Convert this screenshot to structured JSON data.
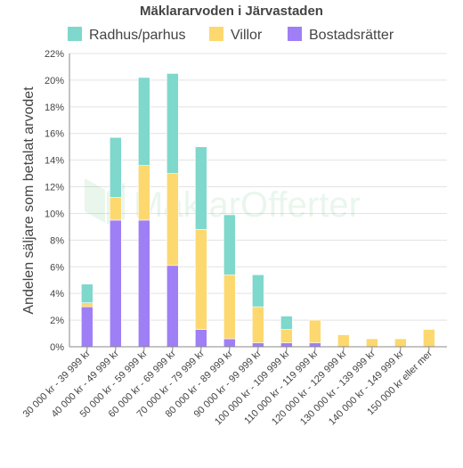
{
  "chart_data": {
    "type": "bar",
    "stacked": true,
    "title": "Mäklararvoden i Järvastaden",
    "ylabel": "Andelen säljare som betalat arvodet",
    "xlabel": "",
    "ylim": [
      0,
      22
    ],
    "y_ticks": [
      "0%",
      "2%",
      "4%",
      "6%",
      "8%",
      "10%",
      "12%",
      "14%",
      "16%",
      "18%",
      "20%",
      "22%"
    ],
    "grid": true,
    "legend_position": "top",
    "watermark": "MäklarOfferter",
    "categories": [
      "30 000 kr - 39 999 kr",
      "40 000 kr - 49 999 kr",
      "50 000 kr - 59 999 kr",
      "60 000 kr - 69 999 kr",
      "70 000 kr - 79 999 kr",
      "80 000 kr - 89 999 kr",
      "90 000 kr - 99 999 kr",
      "100 000 kr - 109 999 kr",
      "110 000 kr - 119 999 kr",
      "120 000 kr - 129 999 kr",
      "130 000 kr - 139 999 kr",
      "140 000 kr - 149 999 kr",
      "150 000 kr eller mer"
    ],
    "series": [
      {
        "name": "Bostadsrätter",
        "color": "#9f7ff5",
        "values": [
          3.0,
          9.5,
          9.5,
          6.1,
          1.3,
          0.6,
          0.3,
          0.3,
          0.3,
          0.0,
          0.0,
          0.0,
          0.0
        ]
      },
      {
        "name": "Villor",
        "color": "#fcd86f",
        "values": [
          0.3,
          1.7,
          4.1,
          6.9,
          7.5,
          4.8,
          2.7,
          1.0,
          1.7,
          0.9,
          0.6,
          0.6,
          1.3
        ]
      },
      {
        "name": "Radhus/parhus",
        "color": "#7ed8cc",
        "values": [
          1.4,
          4.5,
          6.6,
          7.5,
          6.2,
          4.5,
          2.4,
          1.0,
          0.0,
          0.0,
          0.0,
          0.0,
          0.0
        ]
      }
    ],
    "legend_order": [
      "Radhus/parhus",
      "Villor",
      "Bostadsrätter"
    ]
  }
}
